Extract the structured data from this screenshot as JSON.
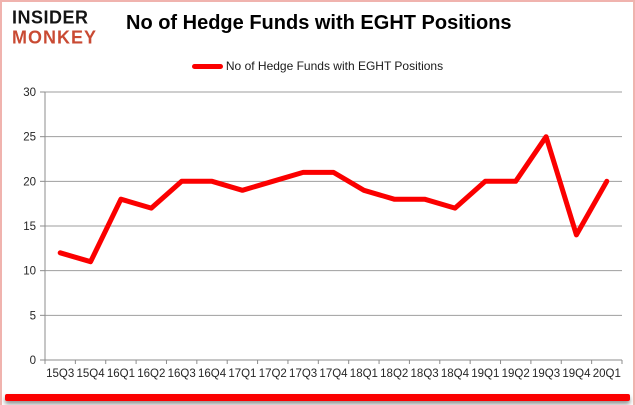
{
  "brand": {
    "line1": "INSIDER",
    "line2": "MONKEY",
    "accent_color": "#c94a33"
  },
  "header": {
    "title": "No of Hedge Funds with EGHT Positions"
  },
  "legend": {
    "label": "No of Hedge Funds with EGHT Positions",
    "marker_color": "#fb0000"
  },
  "chart_data": {
    "type": "line",
    "title": "No of Hedge Funds with EGHT Positions",
    "categories": [
      "15Q3",
      "15Q4",
      "16Q1",
      "16Q2",
      "16Q3",
      "16Q4",
      "17Q1",
      "17Q2",
      "17Q3",
      "17Q4",
      "18Q1",
      "18Q2",
      "18Q3",
      "18Q4",
      "19Q1",
      "19Q2",
      "19Q3",
      "19Q4",
      "20Q1"
    ],
    "values": [
      12,
      11,
      18,
      17,
      20,
      20,
      19,
      20,
      21,
      21,
      19,
      18,
      18,
      17,
      20,
      20,
      25,
      14,
      20
    ],
    "series_name": "No of Hedge Funds with EGHT Positions",
    "xlabel": "",
    "ylabel": "",
    "ylim": [
      0,
      30
    ],
    "yticks": [
      0,
      5,
      10,
      15,
      20,
      25,
      30
    ],
    "grid": true,
    "legend_position": "top",
    "line_color": "#fb0000",
    "grid_color": "#9e9e9e",
    "axis_color": "#8c8c8c",
    "tick_label_color": "#262626"
  }
}
